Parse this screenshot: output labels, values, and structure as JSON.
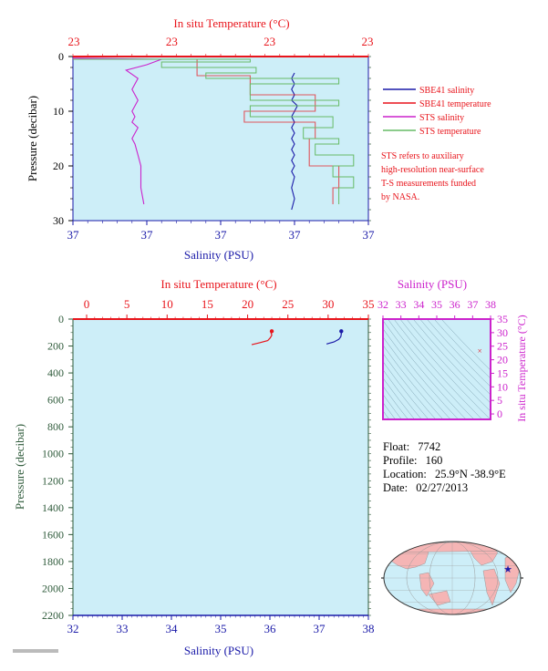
{
  "chart_data": [
    {
      "type": "line",
      "title": "",
      "top_axis": {
        "label": "In situ Temperature (°C)",
        "ticks": [
          "23",
          "23",
          "23",
          "23"
        ]
      },
      "bottom_axis": {
        "label": "Salinity (PSU)",
        "ticks": [
          "37",
          "37",
          "37",
          "37",
          "37"
        ]
      },
      "left_axis": {
        "label": "Pressure (decibar)",
        "ticks": [
          "0",
          "10",
          "20",
          "30"
        ]
      },
      "ylim": [
        30,
        0
      ],
      "grid": false,
      "legend_position": "right",
      "legend": [
        {
          "name": "SBE41 salinity",
          "color": "#1a1aa8"
        },
        {
          "name": "SBE41 temperature",
          "color": "#e8141b"
        },
        {
          "name": "STS salinity",
          "color": "#cc22cc"
        },
        {
          "name": "STS temperature",
          "color": "#66bb66"
        }
      ],
      "note": [
        "STS refers to auxiliary",
        "high-resolution near-surface",
        "T-S measurements funded",
        "by NASA."
      ],
      "series": [
        {
          "name": "SBE41 salinity",
          "xf": [
            0.75,
            0.74,
            0.75,
            0.74,
            0.75,
            0.74,
            0.76,
            0.75,
            0.74,
            0.75,
            0.74,
            0.75,
            0.74,
            0.75,
            0.74,
            0.75,
            0.74,
            0.75,
            0.74,
            0.75,
            0.74,
            0.75,
            0.74
          ],
          "y": [
            3,
            4,
            5,
            6,
            7,
            8,
            9,
            10,
            11,
            12,
            13,
            14,
            15,
            16,
            17,
            18,
            19,
            20,
            21,
            22,
            24,
            26,
            28
          ]
        },
        {
          "name": "SBE41 temperature",
          "xf": [
            0.0,
            0.42,
            0.42,
            0.6,
            0.6,
            0.82,
            0.82,
            0.58,
            0.58,
            0.82,
            0.82,
            0.8,
            0.8,
            0.9,
            0.9,
            0.88,
            0.88
          ],
          "y": [
            0.5,
            1.5,
            3.5,
            3.5,
            7,
            7,
            10,
            10,
            12,
            12,
            15,
            15,
            20,
            20,
            24,
            24,
            27
          ]
        },
        {
          "name": "STS salinity",
          "xf": [
            0.0,
            0.3,
            0.25,
            0.18,
            0.22,
            0.2,
            0.22,
            0.2,
            0.21,
            0.2,
            0.22,
            0.2,
            0.21,
            0.22,
            0.23,
            0.23,
            0.24
          ],
          "y": [
            0.3,
            0.5,
            1.5,
            2.5,
            4,
            6,
            8,
            10,
            11,
            12,
            13,
            15,
            16,
            18,
            20,
            24,
            27
          ]
        },
        {
          "name": "STS temperature",
          "xf": [
            0.0,
            0.6,
            0.3,
            0.62,
            0.45,
            0.9,
            0.6,
            0.9,
            0.6,
            0.88,
            0.78,
            0.9,
            0.82,
            0.95,
            0.88,
            0.95,
            0.9
          ],
          "y": [
            0.5,
            1,
            2,
            3,
            4,
            5,
            8,
            9,
            11,
            13,
            15,
            16,
            18,
            20,
            22,
            24,
            27
          ]
        }
      ]
    },
    {
      "type": "line",
      "top_axis": {
        "label": "In situ Temperature (°C)",
        "ticks": [
          "0",
          "5",
          "10",
          "15",
          "20",
          "25",
          "30",
          "35"
        ],
        "range": [
          0,
          35
        ]
      },
      "bottom_axis": {
        "label": "Salinity (PSU)",
        "ticks": [
          "32",
          "33",
          "34",
          "35",
          "36",
          "37",
          "38"
        ],
        "range": [
          32,
          38
        ]
      },
      "left_axis": {
        "label": "Pressure (decibar)",
        "ticks": [
          "0",
          "200",
          "400",
          "600",
          "800",
          "1000",
          "1200",
          "1400",
          "1600",
          "1800",
          "2000",
          "2200"
        ],
        "range": [
          0,
          2200
        ]
      },
      "ylim": [
        2200,
        0
      ],
      "grid": false,
      "series": [
        {
          "name": "Temperature",
          "color": "#e8141b",
          "x": [
            23.0,
            22.9,
            23.0,
            22.8,
            22.5,
            21.5,
            20.5
          ],
          "y": [
            90,
            100,
            120,
            140,
            160,
            175,
            190
          ]
        },
        {
          "name": "Salinity",
          "color": "#1a1aa8",
          "x": [
            37.45,
            37.45,
            37.44,
            37.4,
            37.3,
            37.15
          ],
          "y": [
            90,
            110,
            130,
            150,
            170,
            185
          ]
        }
      ],
      "markers": [
        {
          "series": "Temperature",
          "x": 23.0,
          "y": 90
        },
        {
          "series": "Salinity",
          "x": 37.45,
          "y": 90
        }
      ]
    },
    {
      "type": "scatter",
      "top_axis": {
        "label": "Salinity (PSU)",
        "ticks": [
          "32",
          "33",
          "34",
          "35",
          "36",
          "37",
          "38"
        ],
        "range": [
          32,
          38
        ]
      },
      "right_axis": {
        "label": "In situ Temperature (°C)",
        "ticks": [
          "0",
          "5",
          "10",
          "15",
          "20",
          "25",
          "30",
          "35"
        ],
        "range": [
          -2,
          35
        ]
      },
      "points": [
        {
          "x": 37.4,
          "y": 23.3
        }
      ]
    }
  ],
  "info": {
    "float_label": "Float:",
    "float_value": "7742",
    "profile_label": "Profile:",
    "profile_value": "160",
    "location_label": "Location:",
    "location_value": "25.9°N  -38.9°E",
    "date_label": "Date:",
    "date_value": "02/27/2013"
  },
  "colors": {
    "plot_bg": "#cdeef8",
    "temperature": "#e8141b",
    "salinity": "#1a1aa8",
    "sts_salinity": "#cc22cc",
    "sts_temperature": "#66bb66",
    "ts_frame": "#cc22cc",
    "pressure_label": "#2e5a3a",
    "land": "#f5b5b5",
    "ocean": "#cdeef8"
  },
  "map": {
    "marker": "float-location-star"
  }
}
